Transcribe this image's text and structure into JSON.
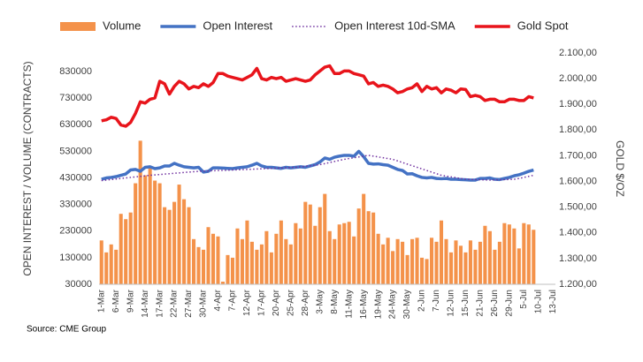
{
  "chart_data": {
    "type": "combo",
    "y_label": "OPEN INTEREST / VOLUME (CONTRACTS)",
    "y2_label": "GOLD $/OZ",
    "source": "Source: CME Group",
    "grid": false,
    "legend": "top",
    "categories": [
      "1-Mar",
      null,
      null,
      "6-Mar",
      null,
      null,
      "9-Mar",
      null,
      null,
      "14-Mar",
      null,
      null,
      "17-Mar",
      null,
      null,
      "22-Mar",
      null,
      null,
      "27-Mar",
      null,
      null,
      "30-Mar",
      null,
      null,
      "4-Apr",
      null,
      null,
      "7-Apr",
      null,
      null,
      "12-Apr",
      null,
      null,
      "17-Apr",
      null,
      null,
      "20-Apr",
      null,
      null,
      "25-Apr",
      null,
      null,
      "28-Apr",
      null,
      null,
      "3-May",
      null,
      null,
      "8-May",
      null,
      null,
      "11-May",
      null,
      null,
      "16-May",
      null,
      null,
      "19-May",
      null,
      null,
      "24-May",
      null,
      null,
      "30-May",
      null,
      null,
      "2-Jun",
      null,
      null,
      "7-Jun",
      null,
      null,
      "12-Jun",
      null,
      null,
      "15-Jun",
      null,
      null,
      "21-Jun",
      null,
      null,
      "26-Jun",
      null,
      null,
      "29-Jun",
      null,
      null,
      "5-Jul",
      null,
      null,
      "10-Jul",
      null,
      null,
      "13-Jul"
    ],
    "ylim": [
      30000,
      900000
    ],
    "yticks": [
      30000,
      130000,
      230000,
      330000,
      430000,
      530000,
      630000,
      730000,
      830000
    ],
    "y2lim": [
      1200,
      2100
    ],
    "y2ticks": [
      {
        "value": 1200,
        "label": "1.200,00"
      },
      {
        "value": 1300,
        "label": "1.300,00"
      },
      {
        "value": 1400,
        "label": "1.400,00"
      },
      {
        "value": 1500,
        "label": "1.500,00"
      },
      {
        "value": 1600,
        "label": "1.600,00"
      },
      {
        "value": 1700,
        "label": "1.700,00"
      },
      {
        "value": 1800,
        "label": "1.800,00"
      },
      {
        "value": 1900,
        "label": "1.900,00"
      },
      {
        "value": 2000,
        "label": "2.000,00"
      },
      {
        "value": 2100,
        "label": "2.100,00"
      }
    ],
    "series": [
      {
        "name": "Volume",
        "type": "bar",
        "color": "#f4924a",
        "values": [
          195000,
          150000,
          180000,
          160000,
          295000,
          275000,
          300000,
          410000,
          570000,
          440000,
          470000,
          420000,
          410000,
          320000,
          310000,
          340000,
          405000,
          350000,
          320000,
          200000,
          170000,
          160000,
          245000,
          220000,
          210000,
          40000,
          140000,
          130000,
          240000,
          200000,
          270000,
          190000,
          160000,
          180000,
          230000,
          150000,
          220000,
          270000,
          200000,
          180000,
          260000,
          240000,
          340000,
          330000,
          250000,
          320000,
          370000,
          230000,
          200000,
          255000,
          260000,
          265000,
          210000,
          315000,
          370000,
          305000,
          300000,
          220000,
          180000,
          205000,
          155000,
          200000,
          190000,
          140000,
          200000,
          205000,
          130000,
          125000,
          205000,
          190000,
          270000,
          200000,
          150000,
          195000,
          175000,
          150000,
          195000,
          160000,
          190000,
          250000,
          230000,
          160000,
          190000,
          260000,
          255000,
          240000,
          165000,
          260000,
          255000,
          235000,
          null,
          null,
          null,
          null
        ]
      },
      {
        "name": "Open Interest",
        "type": "line",
        "color": "#4472c4",
        "width": 3.5,
        "values": [
          425000,
          430000,
          432000,
          435000,
          440000,
          445000,
          460000,
          462000,
          455000,
          470000,
          472000,
          465000,
          468000,
          475000,
          475000,
          485000,
          478000,
          472000,
          470000,
          468000,
          470000,
          452000,
          455000,
          468000,
          468000,
          467000,
          466000,
          465000,
          468000,
          470000,
          472000,
          478000,
          485000,
          475000,
          470000,
          470000,
          468000,
          466000,
          470000,
          468000,
          470000,
          472000,
          470000,
          475000,
          480000,
          490000,
          505000,
          500000,
          508000,
          512000,
          515000,
          515000,
          512000,
          530000,
          510000,
          485000,
          482000,
          483000,
          480000,
          478000,
          470000,
          462000,
          458000,
          445000,
          446000,
          438000,
          432000,
          430000,
          432000,
          428000,
          427000,
          428000,
          425000,
          425000,
          424000,
          423000,
          422000,
          422000,
          428000,
          428000,
          430000,
          425000,
          424000,
          428000,
          432000,
          438000,
          442000,
          448000,
          455000,
          460000,
          null,
          null,
          null,
          null
        ]
      },
      {
        "name": "Open Interest 10d-SMA",
        "type": "line",
        "color": "#7030a0",
        "width": 1.5,
        "dash": "dotted",
        "values": [
          420000,
          422000,
          424000,
          426000,
          428000,
          430000,
          432000,
          434000,
          436000,
          438000,
          440000,
          441500,
          443000,
          444500,
          446000,
          447500,
          449000,
          450500,
          452000,
          453500,
          455000,
          455700,
          456400,
          457100,
          457800,
          458500,
          459200,
          459900,
          460600,
          461300,
          462000,
          462800,
          463600,
          464400,
          465200,
          466000,
          466800,
          467600,
          468400,
          469200,
          470000,
          472000,
          474000,
          476000,
          478000,
          480000,
          484000,
          488000,
          492000,
          496000,
          500000,
          503000,
          506000,
          509000,
          512000,
          515000,
          512000,
          509000,
          506000,
          503000,
          500000,
          494000,
          488000,
          482000,
          476000,
          470000,
          464000,
          458000,
          452000,
          446000,
          440000,
          437000,
          434000,
          431000,
          428000,
          425000,
          424400,
          423800,
          423200,
          422600,
          422000,
          422600,
          423200,
          423800,
          424400,
          425000,
          428000,
          432000,
          436000,
          440000,
          null,
          null,
          null,
          null
        ]
      },
      {
        "name": "Gold Spot",
        "type": "line",
        "axis": "y2",
        "color": "#e8141b",
        "width": 3.5,
        "values": [
          1836,
          1840,
          1850,
          1845,
          1820,
          1815,
          1830,
          1865,
          1910,
          1905,
          1920,
          1925,
          1990,
          1980,
          1940,
          1970,
          1990,
          1980,
          1960,
          1970,
          1965,
          1980,
          1970,
          1985,
          2020,
          2020,
          2010,
          2005,
          2000,
          1995,
          2005,
          2015,
          2040,
          2000,
          1995,
          2005,
          2000,
          2005,
          1990,
          1995,
          2000,
          1995,
          1990,
          1995,
          2015,
          2030,
          2045,
          2050,
          2020,
          2020,
          2030,
          2030,
          2020,
          2015,
          2010,
          1980,
          1985,
          1970,
          1975,
          1970,
          1960,
          1945,
          1950,
          1960,
          1965,
          1980,
          1950,
          1970,
          1960,
          1965,
          1945,
          1960,
          1955,
          1945,
          1960,
          1958,
          1930,
          1935,
          1930,
          1915,
          1920,
          1920,
          1910,
          1910,
          1920,
          1920,
          1915,
          1915,
          1930,
          1925,
          null,
          null,
          null,
          null
        ]
      }
    ]
  }
}
